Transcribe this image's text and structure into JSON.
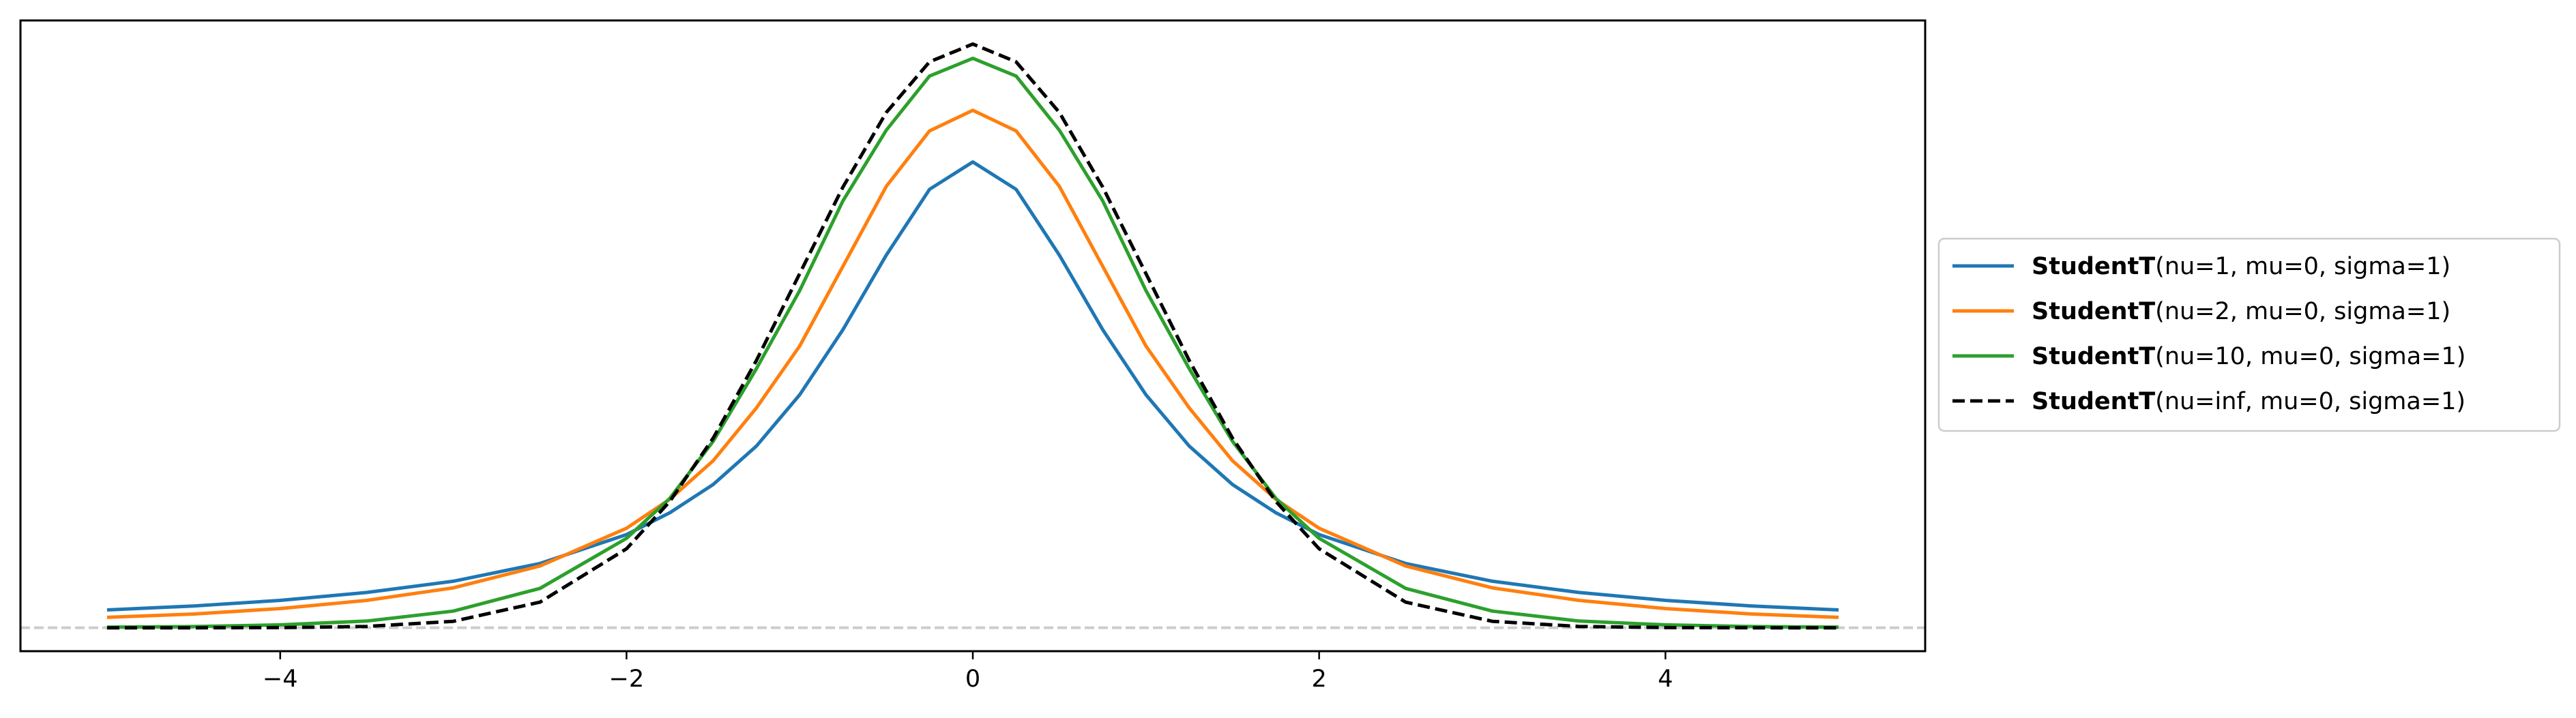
{
  "chart_data": {
    "type": "line",
    "title": "",
    "xlabel": "",
    "ylabel": "",
    "xlim": [
      -5.5,
      5.5
    ],
    "ylim": [
      -0.016,
      0.415
    ],
    "x_ticks": [
      -4,
      -2,
      0,
      2,
      4
    ],
    "x_tick_labels": [
      "−4",
      "−2",
      "0",
      "2",
      "4"
    ],
    "y_ticks_visible": false,
    "grid": false,
    "legend_placement": "center-left outside",
    "baseline": {
      "y": 0,
      "color": "#cccccc",
      "style": "dashed"
    },
    "x": [
      -5,
      -4.5,
      -4,
      -3.5,
      -3,
      -2.5,
      -2,
      -1.75,
      -1.5,
      -1.25,
      -1,
      -0.75,
      -0.5,
      -0.25,
      0,
      0.25,
      0.5,
      0.75,
      1,
      1.25,
      1.5,
      1.75,
      2,
      2.5,
      3,
      3.5,
      4,
      4.5,
      5
    ],
    "series": [
      {
        "name_bold": "StudentT",
        "name_rest": "(nu=1, mu=0, sigma=1)",
        "color": "#1f77b4",
        "dashed": false,
        "values": [
          0.0122,
          0.0149,
          0.0187,
          0.0241,
          0.0318,
          0.0439,
          0.0637,
          0.0786,
          0.0979,
          0.1241,
          0.1592,
          0.2037,
          0.2546,
          0.2996,
          0.3183,
          0.2996,
          0.2546,
          0.2037,
          0.1592,
          0.1241,
          0.0979,
          0.0786,
          0.0637,
          0.0439,
          0.0318,
          0.0241,
          0.0187,
          0.0149,
          0.0122
        ]
      },
      {
        "name_bold": "StudentT",
        "name_rest": "(nu=2, mu=0, sigma=1)",
        "color": "#ff7f0e",
        "dashed": false,
        "values": [
          0.0071,
          0.0094,
          0.0131,
          0.0187,
          0.0273,
          0.0422,
          0.068,
          0.0878,
          0.1141,
          0.1502,
          0.1925,
          0.247,
          0.3016,
          0.3395,
          0.3536,
          0.3395,
          0.3016,
          0.247,
          0.1925,
          0.1502,
          0.1141,
          0.0878,
          0.068,
          0.0422,
          0.0273,
          0.0187,
          0.0131,
          0.0094,
          0.0071
        ]
      },
      {
        "name_bold": "StudentT",
        "name_rest": "(nu=10, mu=0, sigma=1)",
        "color": "#2ca02c",
        "dashed": false,
        "values": [
          0.0004,
          0.0008,
          0.002,
          0.0046,
          0.0114,
          0.0269,
          0.0611,
          0.0884,
          0.1274,
          0.177,
          0.2304,
          0.2917,
          0.34,
          0.377,
          0.3891,
          0.377,
          0.34,
          0.2917,
          0.2304,
          0.177,
          0.1274,
          0.0884,
          0.0611,
          0.0269,
          0.0114,
          0.0046,
          0.002,
          0.0008,
          0.0004
        ]
      },
      {
        "name_bold": "StudentT",
        "name_rest": "(nu=inf, mu=0, sigma=1)",
        "color": "#000000",
        "dashed": true,
        "values": [
          0.0,
          0.0,
          0.0001,
          0.0009,
          0.0044,
          0.0175,
          0.054,
          0.0863,
          0.1295,
          0.1826,
          0.242,
          0.3011,
          0.3521,
          0.3867,
          0.3989,
          0.3867,
          0.3521,
          0.3011,
          0.242,
          0.1826,
          0.1295,
          0.0863,
          0.054,
          0.0175,
          0.0044,
          0.0009,
          0.0001,
          0.0,
          0.0
        ]
      }
    ]
  }
}
